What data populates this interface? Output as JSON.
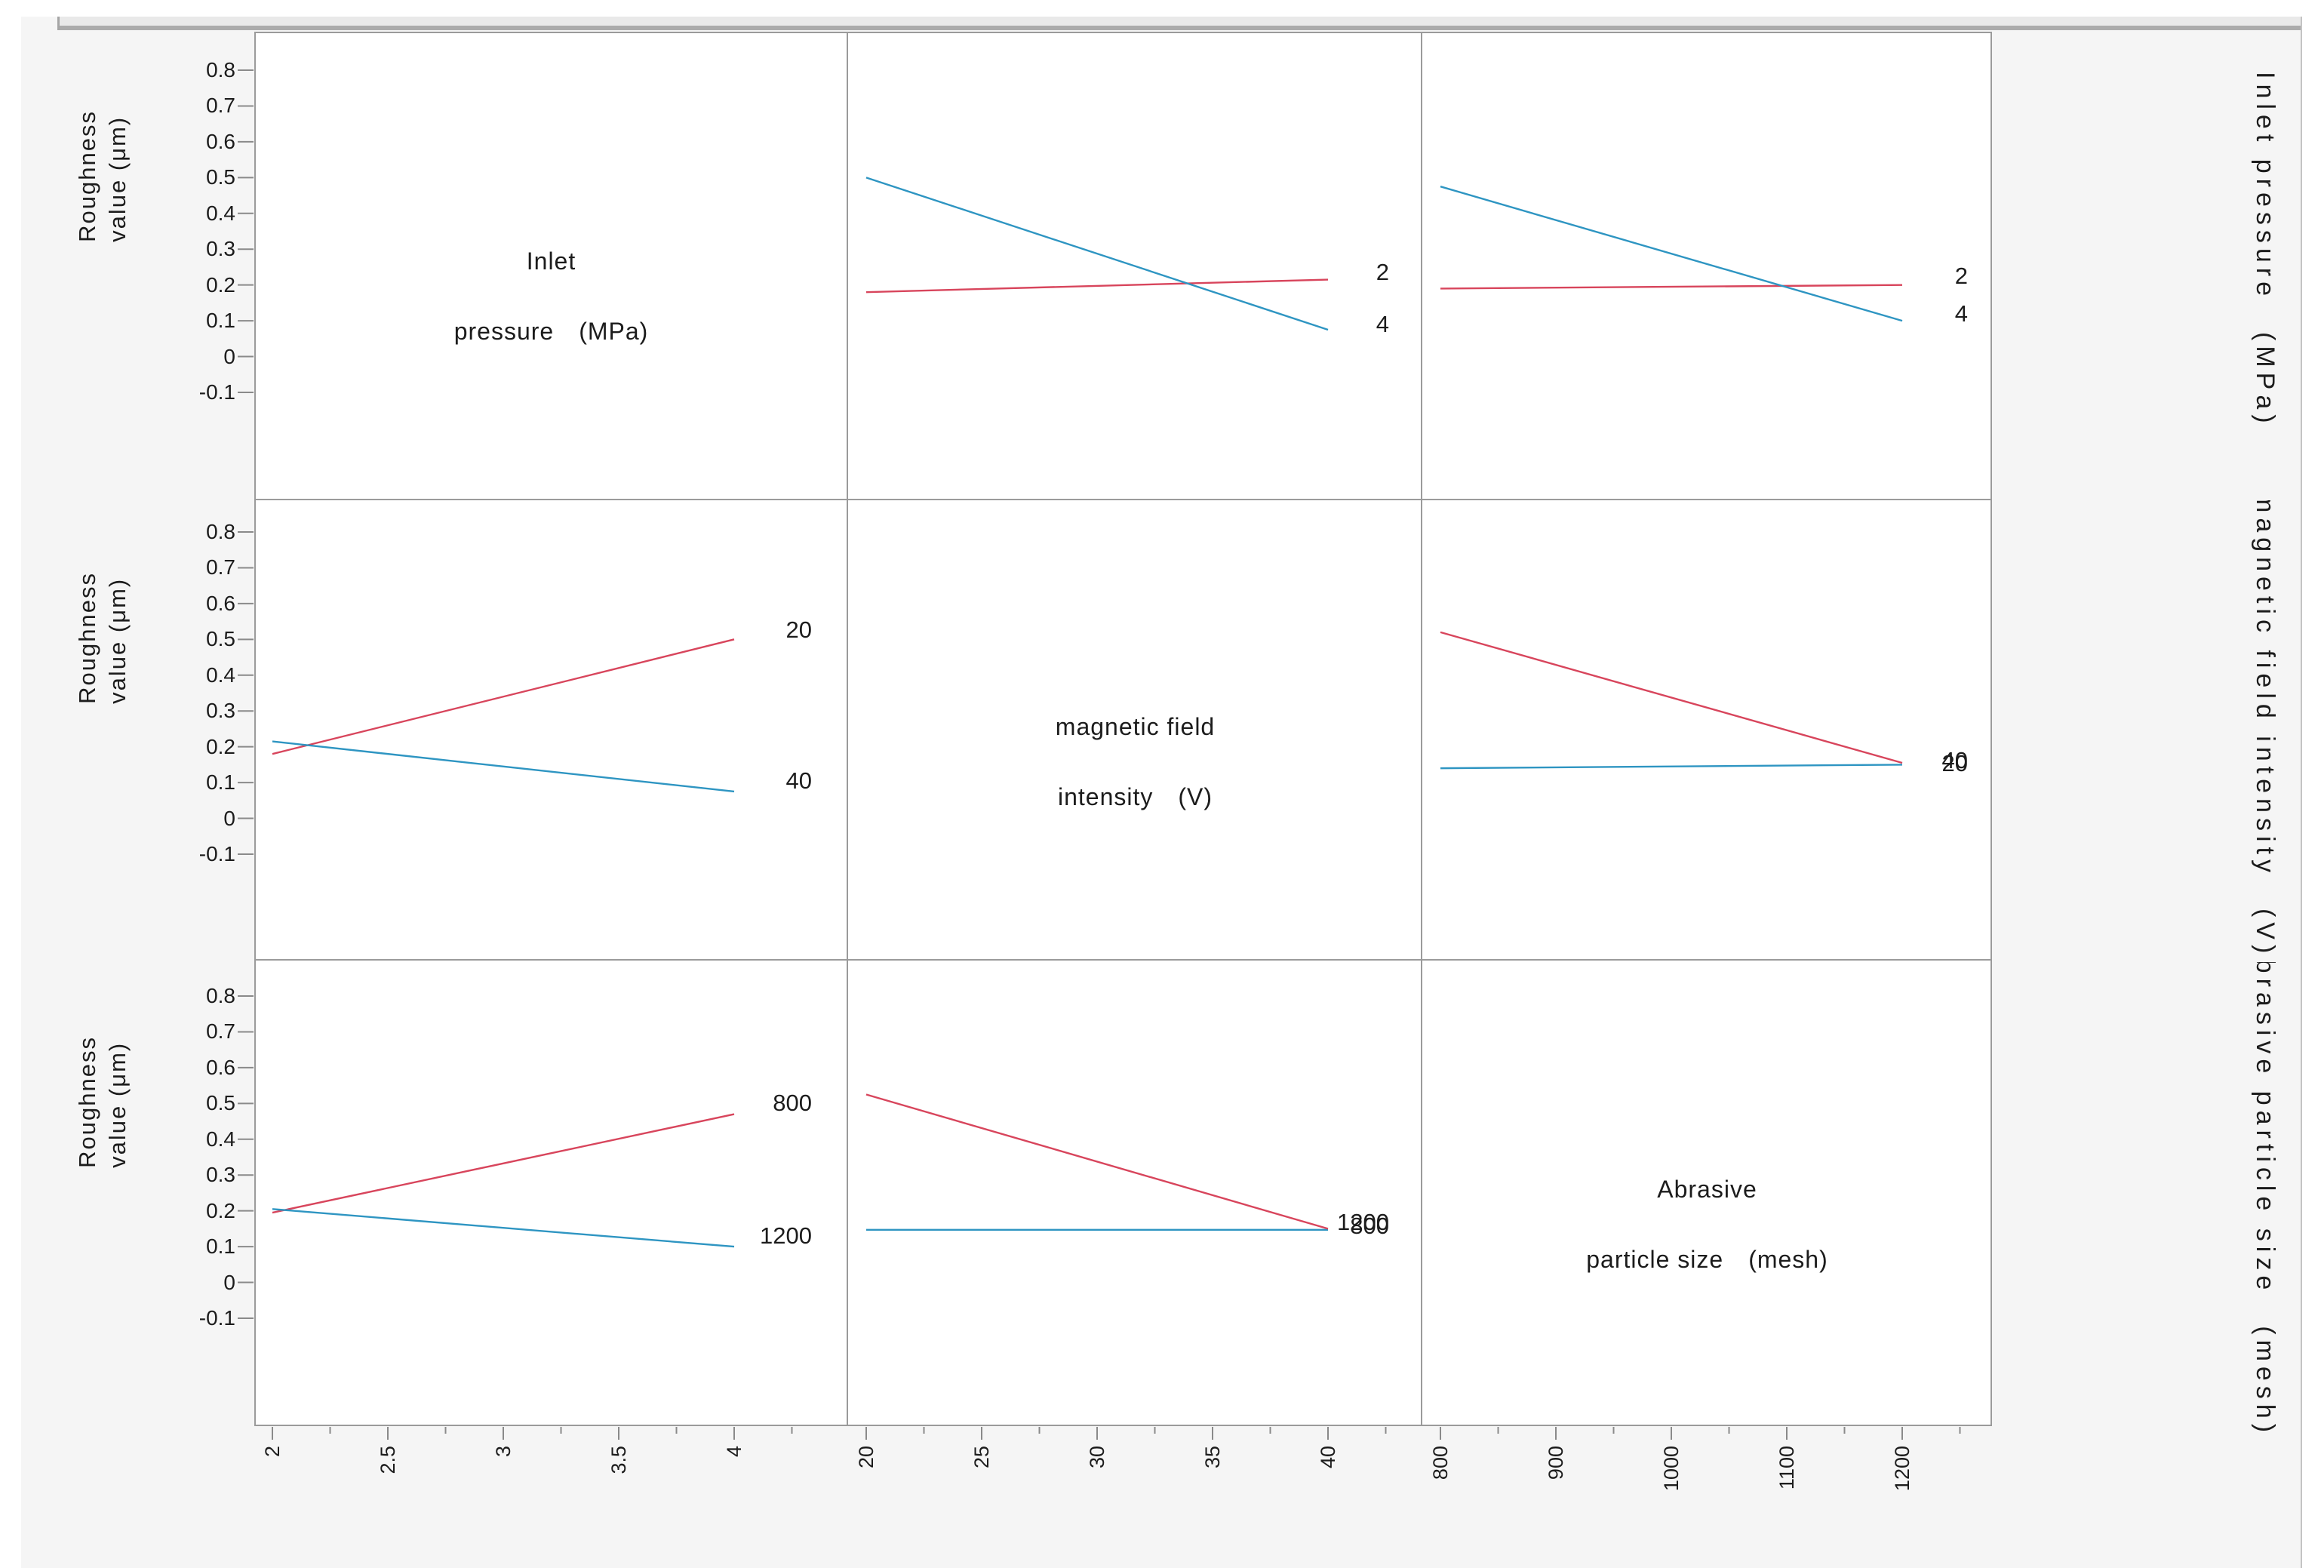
{
  "window": {
    "top_bar": "panel-edge",
    "background": "#f5f5f5"
  },
  "y_axis": {
    "title_line1": "Roughness",
    "title_line2": "value (μm)",
    "tick_labels": [
      "0.8",
      "0.7",
      "0.6",
      "0.5",
      "0.4",
      "0.3",
      "0.2",
      "0.1",
      "0",
      "-0.1"
    ]
  },
  "factors": [
    {
      "diag_line1": "Inlet",
      "diag_line2": "pressure (MPa)",
      "right_label": "Inlet pressure (MPa)",
      "x_tick_labels": [
        "2",
        "2.5",
        "3",
        "3.5",
        "4"
      ],
      "levels": [
        "2",
        "4"
      ]
    },
    {
      "diag_line1": "magnetic field",
      "diag_line2": "intensity (V)",
      "right_label": "magnetic field intensity (V)",
      "x_tick_labels": [
        "20",
        "25",
        "30",
        "35",
        "40"
      ],
      "levels": [
        "20",
        "40"
      ]
    },
    {
      "diag_line1": "Abrasive",
      "diag_line2": "particle size (mesh)",
      "right_label": "Abrasive particle size (mesh)",
      "x_tick_labels": [
        "800",
        "900",
        "1000",
        "1100",
        "1200"
      ],
      "levels": [
        "800",
        "1200"
      ]
    }
  ],
  "colors": {
    "red": "#d8455c",
    "blue": "#2e95c2",
    "grid": "#9b9b9b",
    "tick": "#8a8a8a",
    "text": "#1c1c1c",
    "canvas_bg": "#f5f5f5",
    "panel_bg": "#ffffff"
  },
  "chart_data": {
    "type": "line",
    "subtype": "interaction-plot-matrix",
    "response": "Roughness value (μm)",
    "y_tick_values": [
      0.8,
      0.7,
      0.6,
      0.5,
      0.4,
      0.3,
      0.2,
      0.1,
      0,
      -0.1
    ],
    "ylim": [
      -0.1,
      0.8
    ],
    "grid": "off",
    "row_factors": [
      "Inlet pressure (MPa)",
      "magnetic field intensity (V)",
      "Abrasive particle size (mesh)"
    ],
    "col_factors": [
      "Inlet pressure (MPa)",
      "magnetic field intensity (V)",
      "Abrasive particle size (mesh)"
    ],
    "diagonal_labels": [
      "Inlet pressure (MPa)",
      "magnetic field intensity (V)",
      "Abrasive particle size (mesh)"
    ],
    "x_ranges": {
      "pressure": [
        2,
        4
      ],
      "magnetic": [
        20,
        40
      ],
      "size": [
        800,
        1200
      ]
    },
    "cells": [
      {
        "row": 1,
        "col": 2,
        "x_factor": "magnetic field intensity (V)",
        "x": [
          20,
          40
        ],
        "series": [
          {
            "level": "2",
            "color": "red",
            "y": [
              0.18,
              0.215
            ],
            "label_v": 0.235
          },
          {
            "level": "4",
            "color": "blue",
            "y": [
              0.5,
              0.075
            ],
            "label_v": 0.09
          }
        ]
      },
      {
        "row": 1,
        "col": 3,
        "x_factor": "Abrasive particle size (mesh)",
        "x": [
          800,
          1200
        ],
        "series": [
          {
            "level": "2",
            "color": "red",
            "y": [
              0.19,
              0.2
            ],
            "label_v": 0.225
          },
          {
            "level": "4",
            "color": "blue",
            "y": [
              0.475,
              0.1
            ],
            "label_v": 0.12
          }
        ]
      },
      {
        "row": 2,
        "col": 1,
        "x_factor": "Inlet pressure (MPa)",
        "x": [
          2,
          4
        ],
        "series": [
          {
            "level": "20",
            "color": "red",
            "y": [
              0.18,
              0.5
            ],
            "label_v": 0.525
          },
          {
            "level": "40",
            "color": "blue",
            "y": [
              0.215,
              0.075
            ],
            "label_v": 0.105
          }
        ]
      },
      {
        "row": 2,
        "col": 3,
        "x_factor": "Abrasive particle size (mesh)",
        "x": [
          800,
          1200
        ],
        "series": [
          {
            "level": "20",
            "color": "red",
            "y": [
              0.52,
              0.155
            ],
            "label_v": 0.152
          },
          {
            "level": "40",
            "color": "blue",
            "y": [
              0.14,
              0.15
            ],
            "label_v": 0.162
          }
        ]
      },
      {
        "row": 3,
        "col": 1,
        "x_factor": "Inlet pressure (MPa)",
        "x": [
          2,
          4
        ],
        "series": [
          {
            "level": "800",
            "color": "red",
            "y": [
              0.195,
              0.47
            ],
            "label_v": 0.5
          },
          {
            "level": "1200",
            "color": "blue",
            "y": [
              0.205,
              0.1
            ],
            "label_v": 0.13
          }
        ]
      },
      {
        "row": 3,
        "col": 2,
        "x_factor": "magnetic field intensity (V)",
        "x": [
          20,
          40
        ],
        "series": [
          {
            "level": "1200",
            "color": "blue",
            "y": [
              0.147,
              0.147
            ],
            "label_v": 0.168
          },
          {
            "level": "800",
            "color": "red",
            "y": [
              0.525,
              0.15
            ],
            "label_v": 0.158
          }
        ]
      }
    ]
  }
}
